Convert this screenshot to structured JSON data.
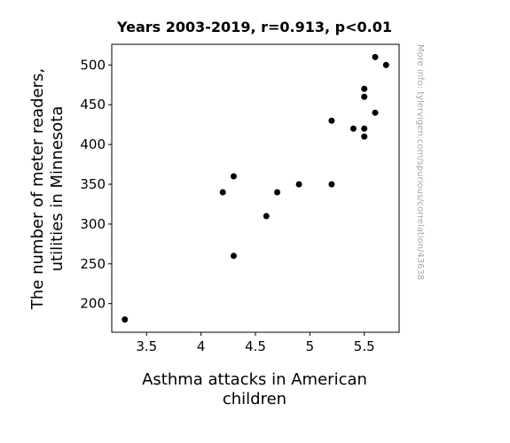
{
  "chart_data": {
    "type": "scatter",
    "title": "Years 2003-2019, r=0.913, p<0.01",
    "xlabel_lines": [
      "Asthma attacks in American",
      "children"
    ],
    "ylabel_lines": [
      "The number of meter readers,",
      "utilities in Minnesota"
    ],
    "watermark": "More info: tylervigen.com/spurious/correlation/43638",
    "xlim": [
      3.18,
      5.82
    ],
    "ylim": [
      164,
      526
    ],
    "x_ticks": [
      3.5,
      4,
      4.5,
      5,
      5.5
    ],
    "x_tick_labels": [
      "3.5",
      "4",
      "4.5",
      "5",
      "5.5"
    ],
    "y_ticks": [
      200,
      250,
      300,
      350,
      400,
      450,
      500
    ],
    "y_tick_labels": [
      "200",
      "250",
      "300",
      "350",
      "400",
      "450",
      "500"
    ],
    "grid": false,
    "marker_color": "#000000",
    "points": [
      {
        "x": 3.3,
        "y": 180
      },
      {
        "x": 4.2,
        "y": 340
      },
      {
        "x": 4.3,
        "y": 360
      },
      {
        "x": 4.3,
        "y": 260
      },
      {
        "x": 4.6,
        "y": 310
      },
      {
        "x": 4.7,
        "y": 340
      },
      {
        "x": 4.9,
        "y": 350
      },
      {
        "x": 5.2,
        "y": 430
      },
      {
        "x": 5.2,
        "y": 350
      },
      {
        "x": 5.4,
        "y": 420
      },
      {
        "x": 5.5,
        "y": 470
      },
      {
        "x": 5.5,
        "y": 460
      },
      {
        "x": 5.5,
        "y": 420
      },
      {
        "x": 5.5,
        "y": 410
      },
      {
        "x": 5.6,
        "y": 510
      },
      {
        "x": 5.6,
        "y": 440
      },
      {
        "x": 5.7,
        "y": 500
      }
    ]
  }
}
